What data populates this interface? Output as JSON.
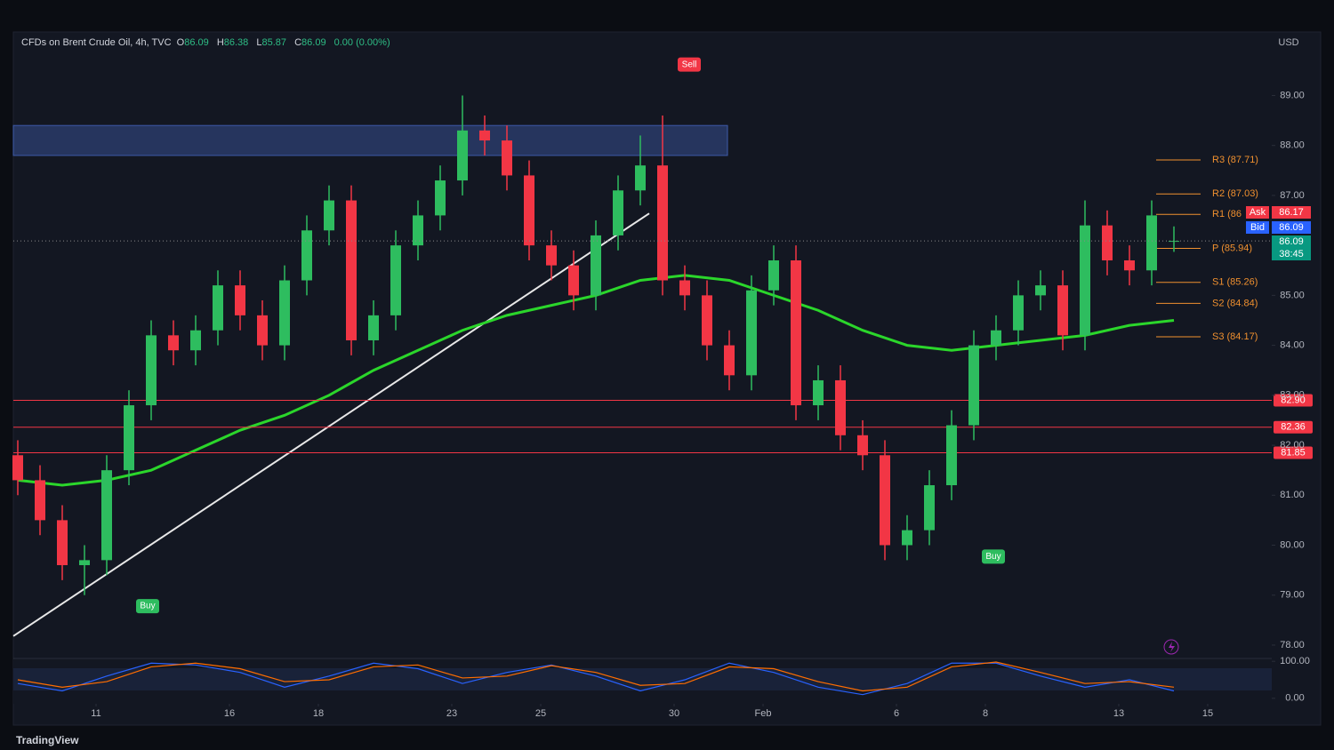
{
  "chart_data": {
    "type": "candlestick",
    "header": {
      "symbol": "CFDs on Brent Crude Oil, 4h, TVC",
      "items": [
        {
          "key": "O",
          "value": "86.09"
        },
        {
          "key": "H",
          "value": "86.38"
        },
        {
          "key": "L",
          "value": "85.87"
        },
        {
          "key": "C",
          "value": "86.09"
        }
      ],
      "change": "0.00 (0.00%)"
    },
    "currency": "USD",
    "brand": "TradingView",
    "up_color": "#2ebd5f",
    "down_color": "#f23645",
    "xlim": [
      -1.86,
      26.44
    ],
    "xticks": [
      {
        "value": 0,
        "label": "11"
      },
      {
        "value": 3,
        "label": "16"
      },
      {
        "value": 5,
        "label": "18"
      },
      {
        "value": 8,
        "label": "23"
      },
      {
        "value": 10,
        "label": "25"
      },
      {
        "value": 13,
        "label": "30"
      },
      {
        "value": 15,
        "label": "Feb"
      },
      {
        "value": 18,
        "label": "6"
      },
      {
        "value": 20,
        "label": "8"
      },
      {
        "value": 23,
        "label": "13"
      },
      {
        "value": 25,
        "label": "15"
      }
    ],
    "ylim": [
      77.75,
      90.2
    ],
    "yticks": [
      {
        "value": 78,
        "label": "78.00"
      },
      {
        "value": 79,
        "label": "79.00"
      },
      {
        "value": 80,
        "label": "80.00"
      },
      {
        "value": 81,
        "label": "81.00"
      },
      {
        "value": 82,
        "label": "82.00"
      },
      {
        "value": 83,
        "label": "83.00"
      },
      {
        "value": 84,
        "label": "84.00"
      },
      {
        "value": 85,
        "label": "85.00"
      },
      {
        "value": 86,
        "label": "86.00"
      },
      {
        "value": 87,
        "label": "87.00"
      },
      {
        "value": 88,
        "label": "88.00"
      },
      {
        "value": 89,
        "label": "89.00"
      }
    ],
    "grid": false,
    "candles": {
      "x": [
        -1.76,
        -1.26,
        -0.76,
        -0.26,
        0.24,
        0.74,
        1.24,
        1.74,
        2.24,
        2.74,
        3.24,
        3.74,
        4.24,
        4.74,
        5.24,
        5.74,
        6.24,
        6.74,
        7.24,
        7.74,
        8.24,
        8.74,
        9.24,
        9.74,
        10.24,
        10.74,
        11.24,
        11.74,
        12.24,
        12.74,
        13.24,
        13.74,
        14.24,
        14.74,
        15.24,
        15.74,
        16.24,
        16.74,
        17.24,
        17.74,
        18.24,
        18.74,
        19.24,
        19.74,
        20.24,
        20.74,
        21.24,
        21.74,
        22.24,
        22.74,
        23.24,
        23.74,
        24.24
      ],
      "open": [
        81.8,
        81.3,
        80.5,
        79.6,
        79.7,
        81.5,
        82.8,
        84.2,
        83.9,
        84.3,
        85.2,
        84.6,
        84.0,
        85.3,
        86.3,
        86.9,
        84.1,
        84.6,
        86.0,
        86.6,
        87.3,
        88.3,
        88.1,
        87.4,
        86.0,
        85.6,
        85.0,
        86.2,
        87.1,
        87.6,
        85.3,
        85.0,
        84.0,
        83.4,
        85.1,
        85.7,
        82.8,
        83.3,
        82.2,
        81.8,
        80.0,
        80.3,
        81.2,
        82.4,
        84.0,
        84.3,
        85.0,
        85.2,
        84.2,
        86.4,
        85.7,
        85.5,
        86.09
      ],
      "high": [
        82.1,
        81.6,
        80.8,
        80.0,
        81.8,
        83.1,
        84.5,
        84.5,
        84.6,
        85.5,
        85.5,
        84.9,
        85.6,
        86.6,
        87.2,
        87.2,
        84.9,
        86.3,
        86.9,
        87.6,
        89.0,
        88.6,
        88.4,
        87.7,
        86.3,
        85.9,
        86.5,
        87.4,
        88.2,
        88.6,
        85.6,
        85.3,
        84.3,
        85.4,
        86.0,
        86.0,
        83.6,
        83.6,
        82.5,
        82.1,
        80.6,
        81.5,
        82.7,
        84.3,
        84.6,
        85.3,
        85.5,
        85.5,
        86.9,
        86.7,
        86.0,
        86.9,
        86.38
      ],
      "low": [
        81.0,
        80.2,
        79.3,
        79.0,
        79.4,
        81.2,
        82.5,
        83.6,
        83.6,
        84.0,
        84.3,
        83.7,
        83.7,
        85.0,
        86.0,
        83.8,
        83.8,
        84.3,
        85.7,
        86.3,
        87.0,
        87.8,
        87.1,
        85.7,
        85.3,
        84.7,
        84.7,
        85.9,
        86.8,
        85.0,
        84.7,
        83.7,
        83.1,
        83.1,
        84.8,
        82.5,
        82.5,
        81.9,
        81.5,
        79.7,
        79.7,
        80.0,
        80.9,
        82.1,
        83.7,
        84.0,
        84.7,
        83.9,
        83.9,
        85.4,
        85.2,
        85.2,
        85.87
      ],
      "close": [
        81.3,
        80.5,
        79.6,
        79.7,
        81.5,
        82.8,
        84.2,
        83.9,
        84.3,
        85.2,
        84.6,
        84.0,
        85.3,
        86.3,
        86.9,
        84.1,
        84.6,
        86.0,
        86.6,
        87.3,
        88.3,
        88.1,
        87.4,
        86.0,
        85.6,
        85.0,
        86.2,
        87.1,
        87.6,
        85.3,
        85.0,
        84.0,
        83.4,
        85.1,
        85.7,
        82.8,
        83.3,
        82.2,
        81.8,
        80.0,
        80.3,
        81.2,
        82.4,
        84.0,
        84.3,
        85.0,
        85.2,
        84.2,
        86.4,
        85.7,
        85.5,
        86.6,
        86.09
      ]
    },
    "ma": {
      "color": "#2bd62b",
      "x": [
        -1.76,
        -0.76,
        0.24,
        1.24,
        2.24,
        3.24,
        4.24,
        5.24,
        6.24,
        7.24,
        8.24,
        9.24,
        10.24,
        11.24,
        12.24,
        13.24,
        14.24,
        15.24,
        16.24,
        17.24,
        18.24,
        19.24,
        20.24,
        21.24,
        22.24,
        23.24,
        24.24
      ],
      "values": [
        81.3,
        81.2,
        81.3,
        81.5,
        81.9,
        82.3,
        82.6,
        83.0,
        83.5,
        83.9,
        84.3,
        84.6,
        84.8,
        85.0,
        85.3,
        85.4,
        85.3,
        85.0,
        84.7,
        84.3,
        84.0,
        83.9,
        84.0,
        84.1,
        84.2,
        84.4,
        84.5
      ]
    },
    "zone": {
      "x": [
        -1.86,
        14.2
      ],
      "y": [
        87.8,
        88.4
      ],
      "color": "#3d5aa8"
    },
    "trendline": {
      "x": [
        -1.86,
        12.44
      ],
      "y": [
        78.18,
        86.64
      ],
      "color": "#e8e8e8"
    },
    "levels": {
      "color": "#f23645",
      "items": [
        {
          "value": 82.9,
          "label": "82.90"
        },
        {
          "value": 82.36,
          "label": "82.36"
        },
        {
          "value": 81.85,
          "label": "81.85"
        }
      ]
    },
    "pivots": {
      "color": "#f0902f",
      "x": [
        23.84,
        24.84
      ],
      "items": [
        {
          "value": 87.71,
          "label": "R3 (87.71)"
        },
        {
          "value": 87.03,
          "label": "R2 (87.03)"
        },
        {
          "value": 86.62,
          "label": "R1 (86"
        },
        {
          "value": 85.94,
          "label": "P (85.94)"
        },
        {
          "value": 85.26,
          "label": "S1 (85.26)"
        },
        {
          "value": 84.84,
          "label": "S2 (84.84)"
        },
        {
          "value": 84.17,
          "label": "S3 (84.17)"
        }
      ]
    },
    "signals": [
      {
        "label": "Sell",
        "x": 13.34,
        "y": 89.62,
        "color": "#f23645"
      },
      {
        "label": "Buy",
        "x": 1.16,
        "y": 78.78,
        "color": "#2ebd5f"
      },
      {
        "label": "Buy",
        "x": 20.18,
        "y": 79.77,
        "color": "#2ebd5f"
      }
    ],
    "quotes": {
      "ask_label": "Ask",
      "ask": 86.17,
      "bid_label": "Bid",
      "bid": 86.09,
      "last": 86.09,
      "countdown": "38:45"
    },
    "oscillator": {
      "ylim": [
        -10,
        110
      ],
      "yticks": [
        {
          "value": 100,
          "label": "100.00"
        },
        {
          "value": 0,
          "label": "0.00"
        }
      ],
      "x": [
        -1.76,
        -0.76,
        0.24,
        1.24,
        2.24,
        3.24,
        4.24,
        5.24,
        6.24,
        7.24,
        8.24,
        9.24,
        10.24,
        11.24,
        12.24,
        13.24,
        14.24,
        15.24,
        16.24,
        17.24,
        18.24,
        19.24,
        20.24,
        21.24,
        22.24,
        23.24,
        24.24
      ],
      "lines": [
        {
          "color": "#2962ff",
          "values": [
            40,
            20,
            60,
            95,
            90,
            70,
            30,
            60,
            95,
            80,
            40,
            70,
            90,
            60,
            20,
            50,
            95,
            70,
            30,
            10,
            40,
            95,
            95,
            60,
            30,
            50,
            20
          ]
        },
        {
          "color": "#ff6d00",
          "values": [
            50,
            30,
            45,
            85,
            95,
            80,
            45,
            50,
            85,
            90,
            55,
            60,
            88,
            70,
            35,
            40,
            85,
            80,
            45,
            20,
            30,
            85,
            98,
            70,
            40,
            45,
            30
          ]
        }
      ]
    }
  }
}
